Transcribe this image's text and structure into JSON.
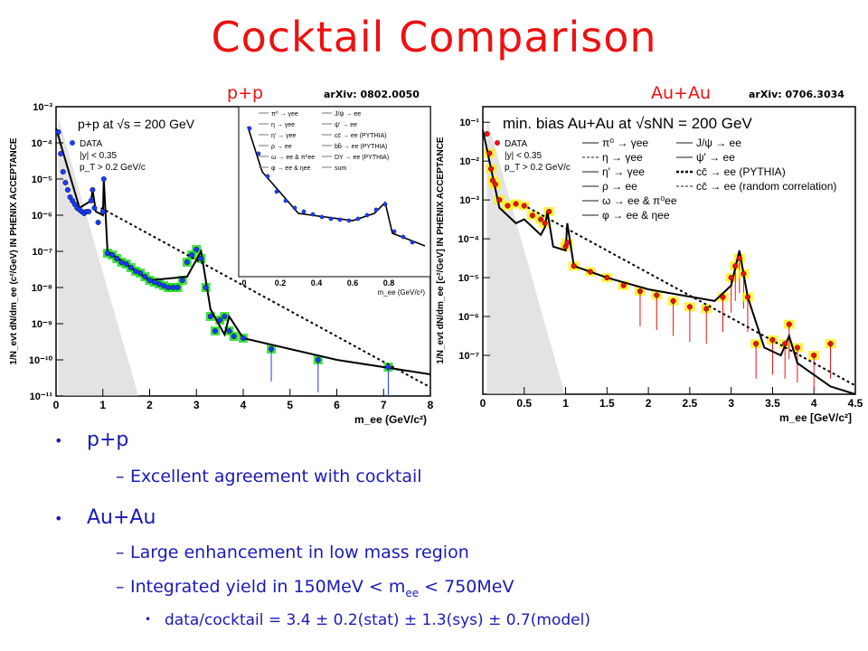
{
  "slide": {
    "title": "Cocktail Comparison",
    "left_panel_label": "p+p",
    "right_panel_label": "Au+Au",
    "left_arxiv": "arXiv: 0802.0050",
    "right_arxiv": "arXiv: 0706.3034"
  },
  "bullets": [
    {
      "level": 1,
      "text": "p+p"
    },
    {
      "level": 2,
      "marker": "–",
      "text": "Excellent agreement with cocktail"
    },
    {
      "level": 1,
      "text": "Au+Au"
    },
    {
      "level": 2,
      "marker": "–",
      "text": "Large enhancement in low mass region"
    },
    {
      "level": 2,
      "marker": "–",
      "text_pre": "Integrated yield in 150MeV < m",
      "text_sub": "ee",
      "text_post": " < 750MeV"
    },
    {
      "level": 3,
      "text": "data/cocktail = 3.4 ± 0.2(stat) ± 1.3(sys) ± 0.7(model)"
    }
  ],
  "colors": {
    "title": "#ee1111",
    "bullet": "#1a1ab8",
    "pp_data": "#1a3cff",
    "auau_data": "#ee1111",
    "sys_pp": "#22dd22",
    "sys_auau": "#ffee22"
  },
  "chart_data": [
    {
      "type": "line",
      "panel": "p+p",
      "annotation_title": "p+p at √s = 200 GeV",
      "annotation_lines": [
        "DATA",
        "|y| < 0.35",
        "p_T > 0.2 GeV/c"
      ],
      "xlabel": "m_ee (GeV/c²)",
      "ylabel": "1/N_evt dN/dm_ee (c²/GeV) IN PHENIX ACCEPTANCE",
      "xlim": [
        0,
        8
      ],
      "ylim_log10": [
        -11,
        -3
      ],
      "x_ticks": [
        "0",
        "1",
        "2",
        "3",
        "4",
        "5",
        "6",
        "7",
        "8"
      ],
      "y_ticks": [
        "10⁻³",
        "10⁻⁴",
        "10⁻⁵",
        "10⁻⁶",
        "10⁻⁷",
        "10⁻⁸",
        "10⁻⁹",
        "10⁻¹⁰",
        "10⁻¹¹"
      ],
      "log_scale_y": true,
      "series": [
        {
          "name": "DATA",
          "marker": "circle",
          "color": "#1a3cff",
          "x": [
            0.05,
            0.1,
            0.15,
            0.2,
            0.25,
            0.3,
            0.35,
            0.4,
            0.45,
            0.5,
            0.55,
            0.6,
            0.65,
            0.7,
            0.75,
            0.78,
            0.82,
            0.9,
            1.0,
            1.02,
            1.1,
            1.2,
            1.3,
            1.4,
            1.5,
            1.6,
            1.7,
            1.8,
            1.9,
            2.0,
            2.1,
            2.2,
            2.3,
            2.4,
            2.5,
            2.6,
            2.7,
            2.8,
            2.9,
            3.0,
            3.1,
            3.2,
            3.3,
            3.4,
            3.5,
            3.6,
            3.7,
            3.8,
            4.0,
            4.6,
            5.6,
            7.1
          ],
          "log10_y": [
            -3.7,
            -4.3,
            -4.8,
            -5.1,
            -5.3,
            -5.5,
            -5.6,
            -5.7,
            -5.8,
            -5.85,
            -5.9,
            -5.95,
            -5.9,
            -5.9,
            -5.6,
            -5.3,
            -5.8,
            -6.2,
            -5.9,
            -5.0,
            -7.05,
            -7.1,
            -7.2,
            -7.3,
            -7.35,
            -7.45,
            -7.55,
            -7.6,
            -7.7,
            -7.8,
            -7.85,
            -7.9,
            -7.95,
            -8.0,
            -8.0,
            -8.0,
            -7.8,
            -7.3,
            -7.1,
            -6.95,
            -7.2,
            -8.0,
            -8.8,
            -9.2,
            -8.9,
            -8.8,
            -9.2,
            -9.35,
            -9.4,
            -9.7,
            -10.0,
            -10.2
          ]
        },
        {
          "name": "sum",
          "color": "#000000",
          "x": [
            0.0,
            0.5,
            0.75,
            0.78,
            0.85,
            1.0,
            1.02,
            1.1,
            2.0,
            2.8,
            3.1,
            3.3,
            3.6,
            3.7,
            4.0,
            6.0,
            8.0
          ],
          "log10_y": [
            -3.6,
            -5.8,
            -5.6,
            -5.3,
            -5.9,
            -6.0,
            -5.0,
            -7.0,
            -7.8,
            -7.7,
            -7.0,
            -8.6,
            -9.3,
            -8.8,
            -9.4,
            -10.0,
            -10.4
          ]
        }
      ],
      "inset": {
        "xlabel": "m_ee (GeV/c²)",
        "xlim": [
          0,
          1
        ],
        "x_ticks": [
          "0",
          "0.2",
          "0.4",
          "0.6",
          "0.8"
        ],
        "legend": [
          "π⁰ → γee",
          "η → γee",
          "η' → γee",
          "ρ → ee",
          "ω → ee & π⁰ee",
          "φ → ee & ηee",
          "J/ψ → ee",
          "ψ' → ee",
          "cc̄ → ee (PYTHIA)",
          "bb̄ → ee (PYTHIA)",
          "DY → ee (PYTHIA)",
          "sum"
        ]
      }
    },
    {
      "type": "line",
      "panel": "Au+Au",
      "annotation_title": "min. bias Au+Au at √sNN = 200 GeV",
      "annotation_lines": [
        "DATA",
        "|y| < 0.35",
        "p_T > 0.2 GeV/c"
      ],
      "xlabel": "m_ee [GeV/c²]",
      "ylabel": "1/N_evt dN/dm_ee [c²/GeV] IN PHENIX ACCEPTANCE",
      "xlim": [
        0,
        4.5
      ],
      "ylim_log10": [
        -8,
        -0.6
      ],
      "x_ticks": [
        "0",
        "0.5",
        "1",
        "1.5",
        "2",
        "2.5",
        "3",
        "3.5",
        "4",
        "4.5"
      ],
      "y_ticks": [
        "10⁻¹",
        "10⁻²",
        "10⁻³",
        "10⁻⁴",
        "10⁻⁵",
        "10⁻⁶",
        "10⁻⁷"
      ],
      "log_scale_y": true,
      "legend": [
        "π⁰ → γee",
        "η → γee",
        "η' → γee",
        "ρ → ee",
        "ω → ee & π⁰ee",
        "φ → ee & ηee",
        "J/ψ → ee",
        "ψ' → ee",
        "cc̄ → ee (PYTHIA)",
        "cc̄ → ee (random correlation)"
      ],
      "series": [
        {
          "name": "DATA",
          "marker": "circle",
          "color": "#ee1111",
          "x": [
            0.05,
            0.08,
            0.1,
            0.12,
            0.15,
            0.2,
            0.3,
            0.4,
            0.5,
            0.6,
            0.7,
            0.75,
            0.8,
            1.0,
            1.02,
            1.1,
            1.3,
            1.5,
            1.7,
            1.9,
            2.1,
            2.3,
            2.5,
            2.7,
            2.9,
            3.0,
            3.05,
            3.1,
            3.15,
            3.2,
            3.3,
            3.5,
            3.65,
            3.7,
            3.8,
            4.0,
            4.2
          ],
          "log10_y": [
            -1.3,
            -1.8,
            -2.2,
            -2.5,
            -2.6,
            -3.0,
            -3.15,
            -3.1,
            -3.15,
            -3.4,
            -3.5,
            -3.6,
            -3.3,
            -4.2,
            -4.1,
            -4.7,
            -4.85,
            -5.0,
            -5.2,
            -5.35,
            -5.45,
            -5.6,
            -5.75,
            -5.8,
            -5.5,
            -5.0,
            -4.7,
            -4.5,
            -4.9,
            -5.5,
            -6.7,
            -6.6,
            -6.7,
            -6.2,
            -6.8,
            -7.0,
            -6.7
          ]
        },
        {
          "name": "cocktail sum",
          "color": "#000000",
          "x": [
            0.0,
            0.2,
            0.4,
            0.5,
            0.7,
            0.75,
            0.78,
            0.85,
            1.0,
            1.02,
            1.1,
            1.5,
            2.0,
            2.8,
            3.0,
            3.1,
            3.2,
            3.4,
            3.6,
            3.7,
            3.8,
            4.2,
            4.5
          ],
          "log10_y": [
            -1.2,
            -3.2,
            -3.6,
            -3.5,
            -3.9,
            -3.7,
            -3.3,
            -4.2,
            -4.3,
            -3.6,
            -4.7,
            -5.0,
            -5.3,
            -5.6,
            -5.2,
            -4.3,
            -5.5,
            -6.8,
            -7.0,
            -6.5,
            -7.2,
            -7.8,
            -8.0
          ]
        }
      ]
    }
  ]
}
